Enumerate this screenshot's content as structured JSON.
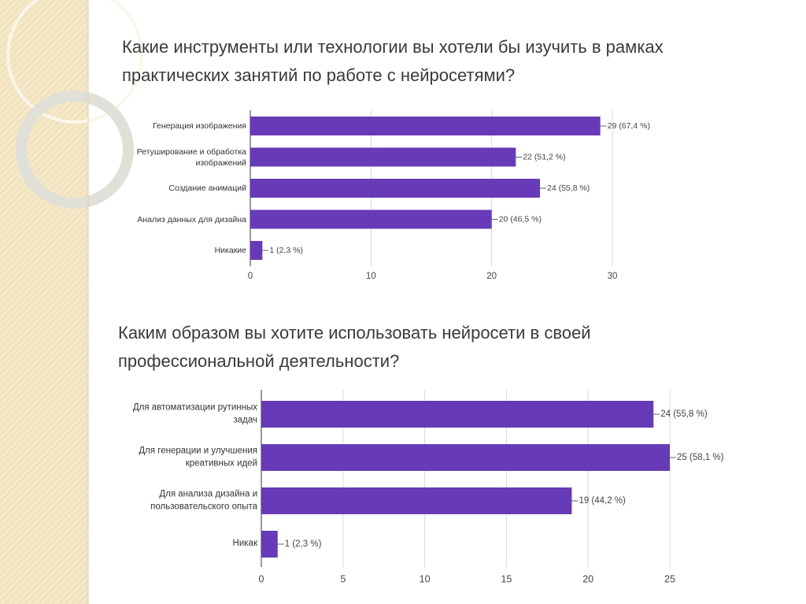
{
  "chart_data": [
    {
      "type": "bar",
      "title": "Какие инструменты или технологии вы хотели бы изучить в рамках практических занятий по работе с нейросетями?",
      "categories": [
        "Генерация изображения",
        "Ретуширование и обработка изображений",
        "Создание анимаций",
        "Анализ данных для дизайна",
        "Никакие"
      ],
      "values": [
        29,
        22,
        24,
        20,
        1
      ],
      "value_labels": [
        "29 (67,4 %)",
        "22 (51,2 %)",
        "24 (55,8 %)",
        "20 (46,5 %)",
        "1 (2,3 %)"
      ],
      "color": "#673ab7",
      "xlim": [
        0,
        30
      ],
      "xticks": [
        0,
        10,
        20,
        30
      ],
      "grid": true
    },
    {
      "type": "bar",
      "title": "Каким образом вы хотите использовать нейросети в своей профессиональной деятельности?",
      "categories": [
        "Для автоматизации рутинных задач",
        "Для генерации и улучшения креативных идей",
        "Для анализа дизайна и пользовательского опыта",
        "Никак"
      ],
      "values": [
        24,
        25,
        19,
        1
      ],
      "value_labels": [
        "24 (55,8 %)",
        "25 (58,1 %)",
        "19 (44,2 %)",
        "1 (2,3 %)"
      ],
      "color": "#673ab7",
      "xlim": [
        0,
        25
      ],
      "xticks": [
        0,
        5,
        10,
        15,
        20,
        25
      ],
      "grid": true
    }
  ]
}
